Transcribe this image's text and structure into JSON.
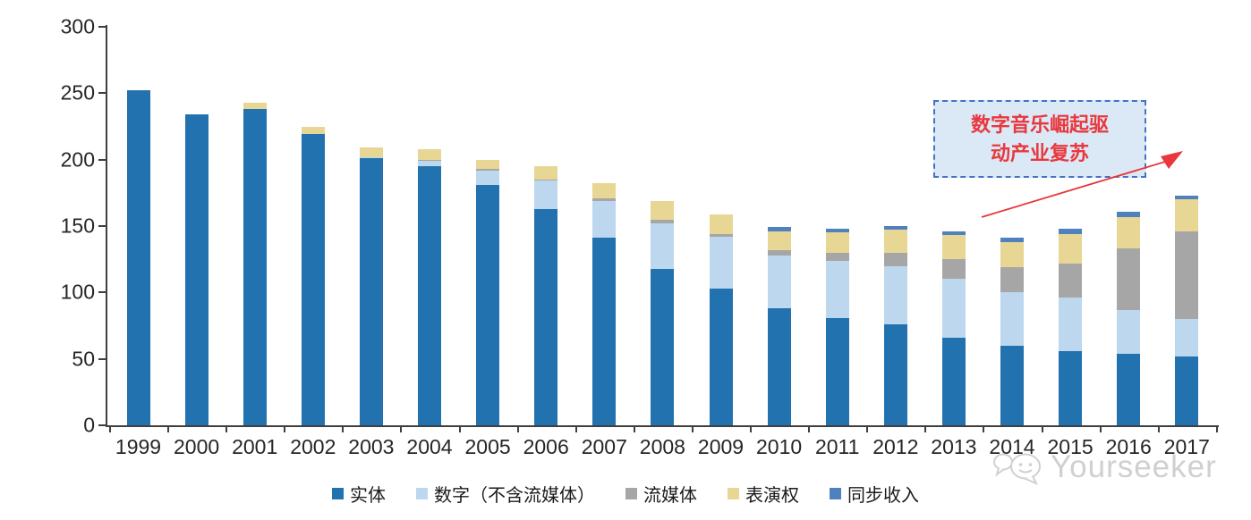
{
  "chart_data": {
    "type": "bar",
    "stacked": true,
    "title": "",
    "xlabel": "",
    "ylabel": "",
    "ylim": [
      0,
      300
    ],
    "yticks": [
      0,
      50,
      100,
      150,
      200,
      250,
      300
    ],
    "grid": false,
    "legend_position": "bottom",
    "categories": [
      "1999",
      "2000",
      "2001",
      "2002",
      "2003",
      "2004",
      "2005",
      "2006",
      "2007",
      "2008",
      "2009",
      "2010",
      "2011",
      "2012",
      "2013",
      "2014",
      "2015",
      "2016",
      "2017"
    ],
    "series": [
      {
        "name": "实体",
        "color": "#2272b0",
        "values": [
          252,
          234,
          238,
          219,
          201,
          195,
          181,
          163,
          141,
          118,
          103,
          88,
          81,
          76,
          66,
          60,
          56,
          54,
          52
        ]
      },
      {
        "name": "数字（不含流媒体）",
        "color": "#bdd7ee",
        "values": [
          0,
          0,
          0,
          0,
          1,
          4,
          11,
          21,
          28,
          34,
          39,
          40,
          43,
          44,
          44,
          40,
          40,
          33,
          28
        ]
      },
      {
        "name": "流媒体",
        "color": "#a6a6a6",
        "values": [
          0,
          0,
          0,
          0,
          0,
          1,
          1,
          1,
          2,
          3,
          2,
          4,
          6,
          10,
          15,
          19,
          26,
          46,
          66
        ]
      },
      {
        "name": "表演权",
        "color": "#e7d694",
        "values": [
          0,
          0,
          5,
          6,
          7,
          8,
          7,
          10,
          11,
          14,
          15,
          14,
          15,
          17,
          18,
          19,
          22,
          24,
          24
        ]
      },
      {
        "name": "同步收入",
        "color": "#4e81bd",
        "values": [
          0,
          0,
          0,
          0,
          0,
          0,
          0,
          0,
          0,
          0,
          0,
          3,
          3,
          3,
          3,
          3,
          4,
          4,
          3
        ]
      }
    ]
  },
  "annotation": {
    "lines": [
      "数字音乐崛起驱",
      "动产业复苏"
    ],
    "full_text": "数字音乐崛起驱动产业复苏",
    "text_color": "#e8383d",
    "border_color": "#4472c4",
    "fill_color": "#dbe8f6",
    "arrow_color": "#e8383d"
  },
  "watermark": {
    "text": "Yourseeker",
    "icon": "chat-bubbles-smiley-icon",
    "color": "#cbcbcb"
  }
}
